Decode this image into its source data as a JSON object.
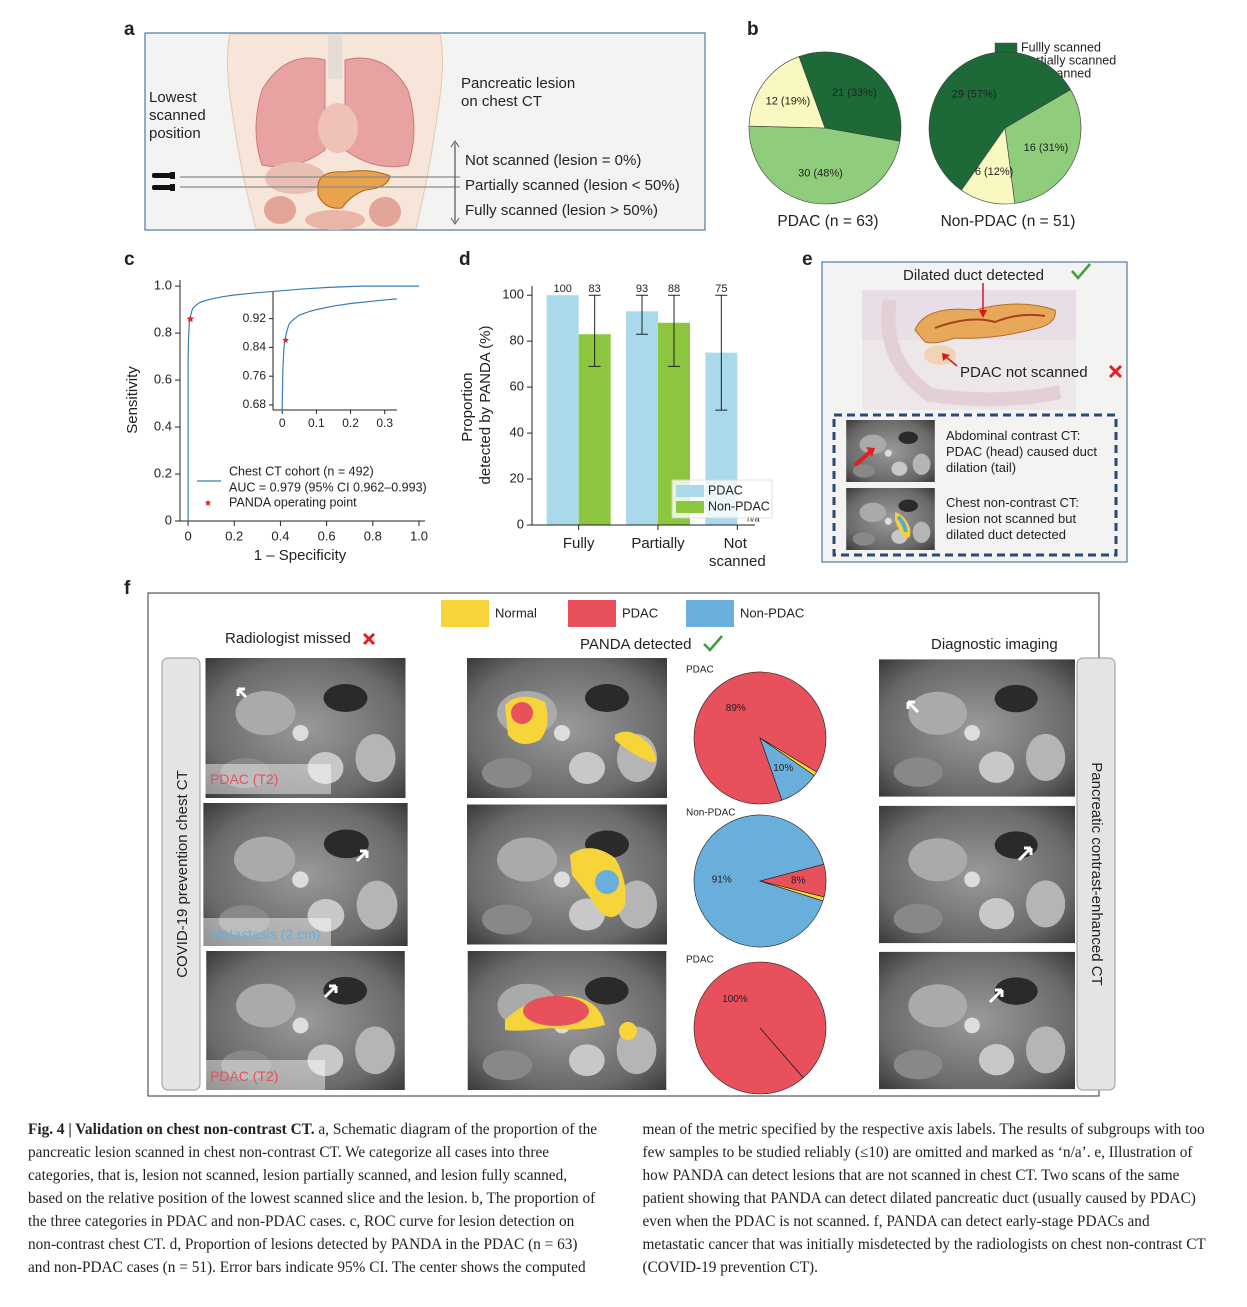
{
  "panel_labels": [
    "a",
    "b",
    "c",
    "d",
    "e",
    "f"
  ],
  "panel_a": {
    "lowest_label": "Lowest scanned position",
    "lesion_label": "Pancreatic lesion on chest CT",
    "levels": [
      "Not scanned (lesion = 0%)",
      "Partially scanned (lesion < 50%)",
      "Fully scanned (lesion > 50%)"
    ]
  },
  "chart_data": [
    {
      "type": "pie",
      "categories": [
        "Fullly scanned",
        "Partially scanned",
        "Not scanned"
      ],
      "colors": [
        "#1d6a38",
        "#8fcd7d",
        "#f8f8c0"
      ],
      "pies": [
        {
          "title": "PDAC (n = 63)",
          "values": [
            21,
            30,
            12
          ],
          "value_labels": [
            "21 (33%)",
            "30 (48%)",
            "12 (19%)"
          ]
        },
        {
          "title": "Non-PDAC (n = 51)",
          "values": [
            29,
            16,
            6
          ],
          "value_labels": [
            "29 (57%)",
            "16 (31%)",
            "6 (12%)"
          ]
        }
      ]
    },
    {
      "type": "line",
      "xlabel": "1 – Specificity",
      "ylabel": "Sensitivity",
      "x": [
        0,
        0,
        0.002,
        0.005,
        0.01,
        0.015,
        0.02,
        0.03,
        0.05,
        0.08,
        0.1,
        0.15,
        0.2,
        0.3,
        0.4,
        0.5,
        0.6,
        0.75,
        1.0
      ],
      "series": [
        {
          "name": "Chest CT cohort (n = 492)",
          "color": "#3b7db3",
          "values": [
            0,
            0.68,
            0.78,
            0.84,
            0.87,
            0.89,
            0.905,
            0.915,
            0.93,
            0.94,
            0.945,
            0.955,
            0.962,
            0.972,
            0.98,
            0.988,
            0.994,
            1.0,
            1.0
          ]
        }
      ],
      "annotation": "AUC = 0.979 (95% CI 0.962–0.993)",
      "operating_point": {
        "name": "PANDA operating point",
        "x": 0.01,
        "y": 0.86,
        "color": "#d62728"
      },
      "xlim": [
        -0.035,
        1.026
      ],
      "ylim": [
        0,
        1.026
      ],
      "xticks": [
        0,
        0.2,
        0.4,
        0.6,
        0.8,
        {
          "value": 1,
          "label": "1.0"
        }
      ],
      "yticks": [
        0,
        0.2,
        0.4,
        0.6,
        0.8,
        {
          "value": 1,
          "label": "1.0"
        }
      ],
      "inset": {
        "xlim": [
          -0.027,
          0.336
        ],
        "ylim": [
          0.666,
          0.994
        ],
        "xticks": [
          0,
          0.1,
          0.2,
          0.3
        ],
        "yticks": [
          0.68,
          0.76,
          0.84,
          0.92
        ]
      }
    },
    {
      "type": "bar",
      "ylabel": "Proportion detected by PANDA (%)",
      "categories": [
        "Fully",
        "Partially",
        "Not scanned"
      ],
      "series": [
        {
          "name": "PDAC",
          "color": "#a9d9ea",
          "values": [
            100,
            93,
            75
          ],
          "ci_low": [
            null,
            83,
            50
          ],
          "ci_high": [
            null,
            100,
            100
          ],
          "value_labels": [
            "100",
            "93",
            "75"
          ]
        },
        {
          "name": "Non-PDAC",
          "color": "#8cc63f",
          "values": [
            83,
            88,
            null
          ],
          "ci_low": [
            69,
            69,
            null
          ],
          "ci_high": [
            100,
            100,
            null
          ],
          "value_labels": [
            "83",
            "88",
            "n/a"
          ]
        }
      ],
      "ylim": [
        0,
        104
      ],
      "yticks": [
        0,
        20,
        40,
        60,
        80,
        100
      ],
      "legend": "lower right"
    },
    {
      "type": "pie",
      "categories": [
        "Normal",
        "PDAC",
        "Non-PDAC"
      ],
      "colors": [
        "#f7d53a",
        "#e8505b",
        "#6aaedc"
      ],
      "pies": [
        {
          "title": "PDAC",
          "values": [
            1,
            89,
            10
          ],
          "value_labels": [
            null,
            "89%",
            "10%"
          ]
        },
        {
          "title": "Non-PDAC",
          "values": [
            1,
            8,
            91
          ],
          "value_labels": [
            null,
            "8%",
            "91%"
          ]
        },
        {
          "title": "PDAC",
          "values": [
            0,
            100,
            0
          ],
          "value_labels": [
            null,
            "100%",
            null
          ]
        }
      ]
    }
  ],
  "panel_e": {
    "top_label": "Dilated duct detected",
    "bottom_label": "PDAC not scanned",
    "scans": [
      "Abdominal contrast CT: PDAC (head) caused duct dilation (tail)",
      "Chest non-contrast CT: lesion not scanned but dilated duct detected"
    ]
  },
  "panel_f": {
    "headings": [
      "Radiologist missed",
      "PANDA detected",
      "Diagnostic imaging"
    ],
    "side_labels": [
      "COVID-19 prevention chest CT",
      "Pancreatic contrast-enhanced CT"
    ],
    "image_labels": [
      "PDAC (T2)",
      "Metastasis (2 cm)",
      "PDAC (T2)"
    ]
  },
  "caption": {
    "title": "Fig. 4 | Validation on chest non-contrast CT.",
    "text": "a, Schematic diagram of the proportion of the pancreatic lesion scanned in chest non-contrast CT. We categorize all cases into three categories, that is, lesion not scanned, lesion partially scanned, and lesion fully scanned, based on the relative position of the lowest scanned slice and the lesion. b, The proportion of the three categories in PDAC and non-PDAC cases. c, ROC curve for lesion detection on non-contrast chest CT. d, Proportion of lesions detected by PANDA in the PDAC (n = 63) and non-PDAC cases (n = 51). Error bars indicate 95% CI. The center shows the computed mean of the metric specified by the respective axis labels. The results of subgroups with too few samples to be studied reliably (≤10) are omitted and marked as ‘n/a’. e, Illustration of how PANDA can detect lesions that are not scanned in chest CT. Two scans of the same patient showing that PANDA can detect dilated pancreatic duct (usually caused by PDAC) even when the PDAC is not scanned. f, PANDA can detect early-stage PDACs and metastatic cancer that was initially misdetected by the radiologists on chest non-contrast CT (COVID-19 prevention CT)."
  }
}
